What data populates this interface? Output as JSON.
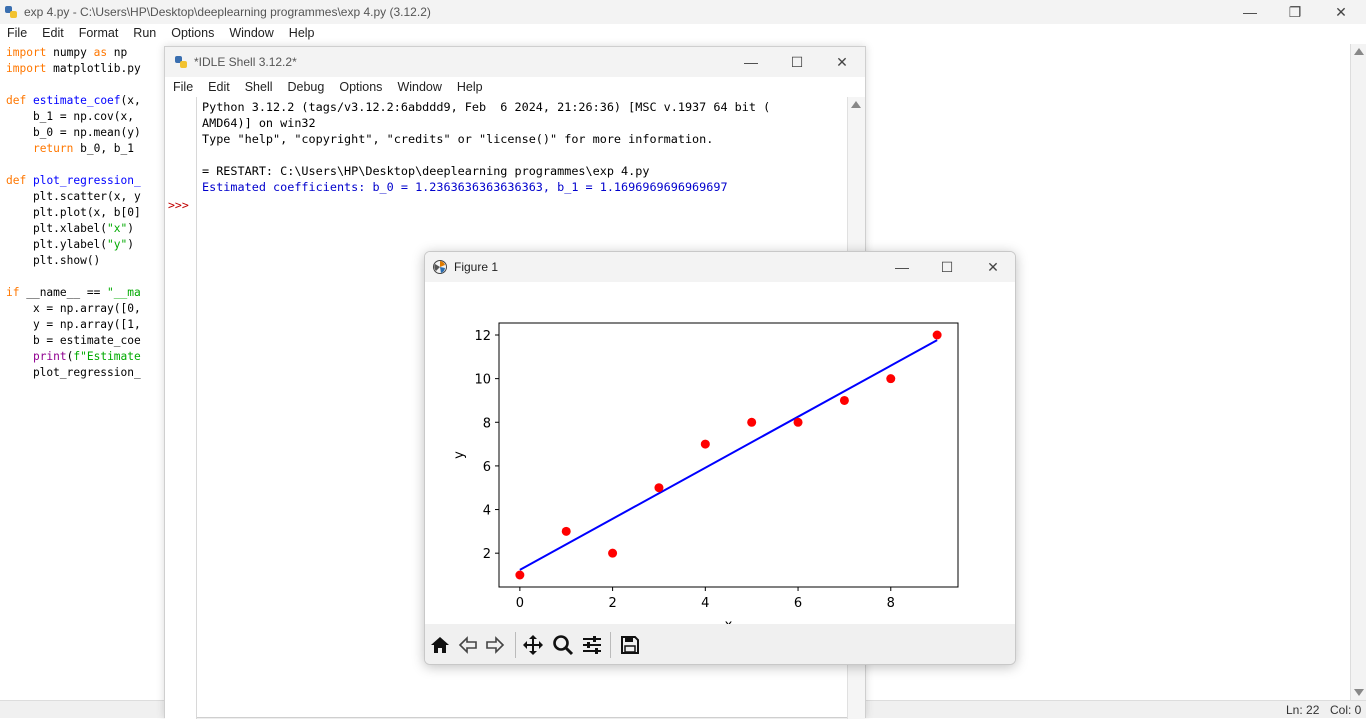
{
  "editor": {
    "title": "exp 4.py - C:\\Users\\HP\\Desktop\\deeplearning programmes\\exp 4.py (3.12.2)",
    "menu": [
      "File",
      "Edit",
      "Format",
      "Run",
      "Options",
      "Window",
      "Help"
    ],
    "status_ln": "Ln: 22",
    "status_col": "Col: 0"
  },
  "shell": {
    "title": "*IDLE Shell 3.12.2*",
    "menu": [
      "File",
      "Edit",
      "Shell",
      "Debug",
      "Options",
      "Window",
      "Help"
    ],
    "prompt": ">>>",
    "lines": [
      "Python 3.12.2 (tags/v3.12.2:6abddd9, Feb  6 2024, 21:26:36) [MSC v.1937 64 bit (",
      "AMD64)] on win32",
      "Type \"help\", \"copyright\", \"credits\" or \"license()\" for more information.",
      "",
      "= RESTART: C:\\Users\\HP\\Desktop\\deeplearning programmes\\exp 4.py",
      "Estimated coefficients: b_0 = 1.2363636363636363, b_1 = 1.1696969696969697"
    ]
  },
  "figure": {
    "title": "Figure 1",
    "toolbar": [
      "home-icon",
      "back-icon",
      "forward-icon",
      "pan-icon",
      "zoom-icon",
      "configure-icon",
      "save-icon"
    ]
  },
  "colors": {
    "scatter": "#ff0000",
    "line": "#0000ff",
    "keyword": "#ff7700",
    "function": "#0000ff",
    "string": "#00aa00",
    "builtin": "#900090",
    "prompt": "#c00000"
  },
  "chart_data": {
    "type": "scatter",
    "title": "",
    "xlabel": "x",
    "ylabel": "y",
    "xlim": [
      -0.45,
      9.45
    ],
    "ylim": [
      0.45,
      12.55
    ],
    "xticks": [
      0,
      2,
      4,
      6,
      8
    ],
    "yticks": [
      2,
      4,
      6,
      8,
      10,
      12
    ],
    "series": [
      {
        "kind": "scatter",
        "x": [
          0,
          1,
          2,
          3,
          4,
          5,
          6,
          7,
          8,
          9
        ],
        "y": [
          1,
          3,
          2,
          5,
          7,
          8,
          8,
          9,
          10,
          12
        ],
        "color": "#ff0000"
      },
      {
        "kind": "line",
        "x": [
          0,
          9
        ],
        "y": [
          1.236,
          11.764
        ],
        "color": "#0000ff"
      }
    ],
    "grid": false
  }
}
